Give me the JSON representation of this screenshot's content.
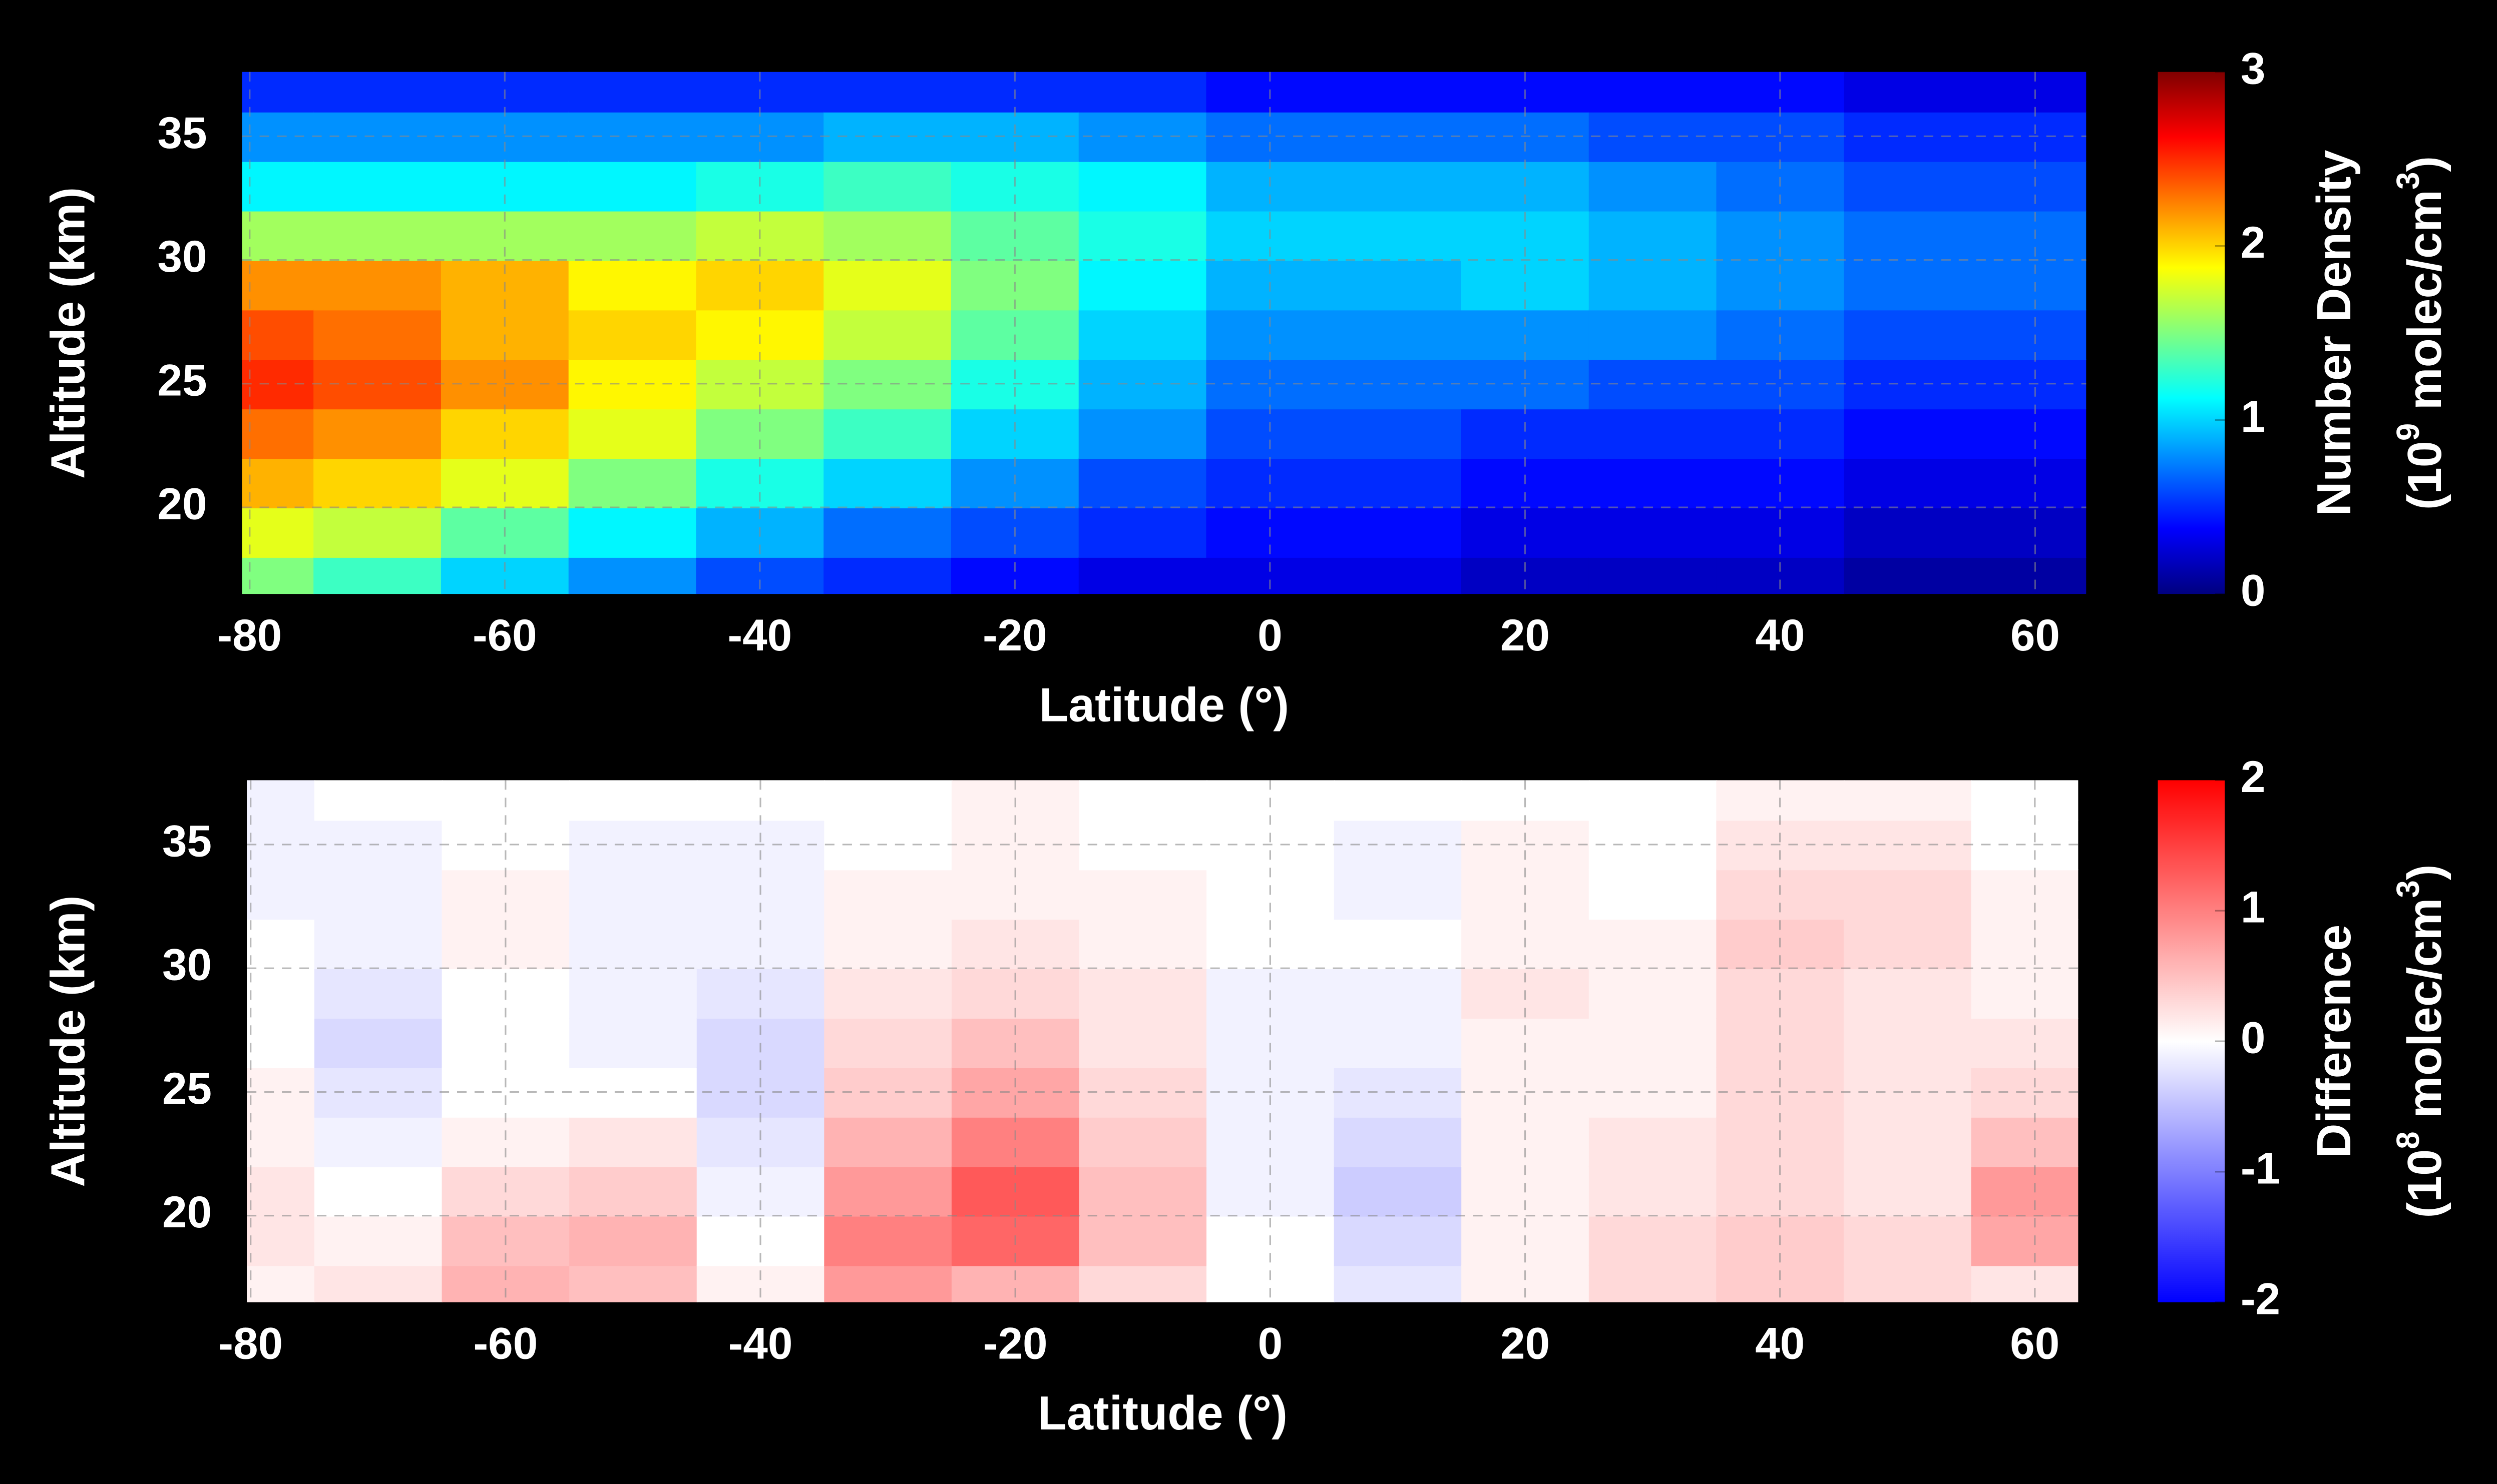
{
  "chart_data": [
    {
      "type": "heatmap",
      "x_label": "Latitude (°)",
      "y_label": "Altitude (km)",
      "colorbar_label": "Number Density",
      "colorbar_units": [
        "(10",
        "9",
        " molec/cm",
        "3",
        ")"
      ],
      "colormap": "jet",
      "x": [
        -80,
        -70,
        -60,
        -50,
        -40,
        -30,
        -20,
        -10,
        0,
        10,
        20,
        30,
        40,
        50,
        60
      ],
      "y": [
        17,
        19,
        21,
        23,
        25,
        27,
        29,
        31,
        33,
        35,
        37
      ],
      "values": [
        [
          1.5,
          1.8,
          2.1,
          2.3,
          2.5,
          2.4,
          2.2,
          1.6,
          1.1,
          0.8,
          0.5
        ],
        [
          1.3,
          1.7,
          2.0,
          2.2,
          2.4,
          2.3,
          2.2,
          1.6,
          1.1,
          0.8,
          0.5
        ],
        [
          1.0,
          1.4,
          1.8,
          2.0,
          2.2,
          2.1,
          2.1,
          1.6,
          1.1,
          0.8,
          0.5
        ],
        [
          0.8,
          1.1,
          1.5,
          1.8,
          1.9,
          2.0,
          1.9,
          1.6,
          1.1,
          0.8,
          0.5
        ],
        [
          0.6,
          0.9,
          1.2,
          1.5,
          1.7,
          1.9,
          2.0,
          1.7,
          1.2,
          0.8,
          0.5
        ],
        [
          0.5,
          0.7,
          1.0,
          1.3,
          1.5,
          1.7,
          1.8,
          1.6,
          1.3,
          0.9,
          0.5
        ],
        [
          0.4,
          0.6,
          0.8,
          1.0,
          1.2,
          1.4,
          1.5,
          1.4,
          1.2,
          0.9,
          0.5
        ],
        [
          0.3,
          0.5,
          0.6,
          0.8,
          0.9,
          1.0,
          1.1,
          1.2,
          1.1,
          0.8,
          0.5
        ],
        [
          0.3,
          0.4,
          0.5,
          0.6,
          0.7,
          0.8,
          0.9,
          1.0,
          0.9,
          0.7,
          0.4
        ],
        [
          0.3,
          0.4,
          0.5,
          0.6,
          0.7,
          0.8,
          0.9,
          1.0,
          0.9,
          0.7,
          0.4
        ],
        [
          0.2,
          0.3,
          0.4,
          0.5,
          0.7,
          0.8,
          1.0,
          1.0,
          0.9,
          0.7,
          0.4
        ],
        [
          0.2,
          0.3,
          0.4,
          0.5,
          0.6,
          0.8,
          0.9,
          0.9,
          0.8,
          0.6,
          0.4
        ],
        [
          0.2,
          0.3,
          0.4,
          0.5,
          0.6,
          0.7,
          0.8,
          0.8,
          0.7,
          0.6,
          0.4
        ],
        [
          0.1,
          0.2,
          0.3,
          0.4,
          0.5,
          0.6,
          0.7,
          0.7,
          0.6,
          0.5,
          0.3
        ],
        [
          0.1,
          0.2,
          0.3,
          0.4,
          0.5,
          0.6,
          0.7,
          0.7,
          0.6,
          0.5,
          0.3
        ]
      ],
      "xlim": [
        -80.6,
        64
      ],
      "xticks": [
        -80,
        -60,
        -40,
        -20,
        0,
        20,
        40,
        60
      ],
      "ylim": [
        16.5,
        37.6
      ],
      "yticks": [
        20,
        25,
        30,
        35
      ],
      "zlim": [
        0,
        3
      ],
      "zticks": [
        0,
        1,
        2,
        3
      ],
      "grid": true
    },
    {
      "type": "heatmap",
      "x_label": "Latitude (°)",
      "y_label": "Altitude (km)",
      "colorbar_label": "Difference",
      "colorbar_units": [
        "(10",
        "8",
        " molec/cm",
        "3",
        ")"
      ],
      "colormap": "bwr",
      "x": [
        -80,
        -70,
        -60,
        -50,
        -40,
        -30,
        -20,
        -10,
        0,
        10,
        20,
        30,
        40,
        50,
        60
      ],
      "y": [
        17,
        19,
        21,
        23,
        25,
        27,
        29,
        31,
        33,
        35,
        37
      ],
      "values": [
        [
          0.1,
          0.2,
          0.2,
          0.1,
          0.1,
          0,
          0,
          0,
          -0.1,
          -0.1,
          -0.1
        ],
        [
          0.2,
          0.1,
          0,
          -0.1,
          -0.2,
          -0.3,
          -0.2,
          -0.1,
          -0.1,
          -0.1,
          0
        ],
        [
          0.6,
          0.5,
          0.3,
          0.1,
          0,
          0,
          0,
          0.1,
          0.1,
          0,
          0
        ],
        [
          0.5,
          0.6,
          0.4,
          0.2,
          0,
          -0.1,
          -0.1,
          -0.1,
          -0.1,
          -0.1,
          0
        ],
        [
          0.1,
          0,
          -0.1,
          -0.2,
          -0.3,
          -0.3,
          -0.2,
          -0.1,
          -0.1,
          -0.1,
          0
        ],
        [
          0.8,
          1.0,
          0.8,
          0.6,
          0.4,
          0.3,
          0.2,
          0.1,
          0.1,
          0,
          0
        ],
        [
          0.6,
          1.2,
          1.3,
          1.0,
          0.7,
          0.5,
          0.3,
          0.2,
          0.1,
          0.1,
          0.1
        ],
        [
          0.3,
          0.5,
          0.5,
          0.4,
          0.3,
          0.2,
          0.2,
          0.1,
          0.1,
          0,
          0
        ],
        [
          0,
          0,
          -0.1,
          -0.1,
          -0.1,
          -0.1,
          -0.1,
          0,
          0,
          0,
          0
        ],
        [
          -0.2,
          -0.3,
          -0.4,
          -0.3,
          -0.2,
          -0.1,
          -0.1,
          0,
          -0.1,
          -0.1,
          0
        ],
        [
          0.1,
          0.1,
          0.1,
          0.1,
          0.1,
          0.1,
          0.2,
          0.1,
          0.1,
          0.1,
          0
        ],
        [
          0.3,
          0.3,
          0.2,
          0.2,
          0.1,
          0.1,
          0.1,
          0.1,
          0,
          0,
          0
        ],
        [
          0.4,
          0.4,
          0.3,
          0.3,
          0.3,
          0.3,
          0.3,
          0.4,
          0.3,
          0.2,
          0.1
        ],
        [
          0.3,
          0.3,
          0.2,
          0.2,
          0.2,
          0.2,
          0.2,
          0.3,
          0.3,
          0.2,
          0.1
        ],
        [
          0.2,
          0.7,
          0.8,
          0.5,
          0.3,
          0.2,
          0.1,
          0.1,
          0.1,
          0,
          0
        ]
      ],
      "xlim": [
        -80.3,
        63.4
      ],
      "xticks": [
        -80,
        -60,
        -40,
        -20,
        0,
        20,
        40,
        60
      ],
      "ylim": [
        16.5,
        37.6
      ],
      "yticks": [
        20,
        25,
        30,
        35
      ],
      "zlim": [
        -2,
        2
      ],
      "zticks": [
        -2,
        -1,
        0,
        1,
        2
      ],
      "grid": true
    }
  ]
}
